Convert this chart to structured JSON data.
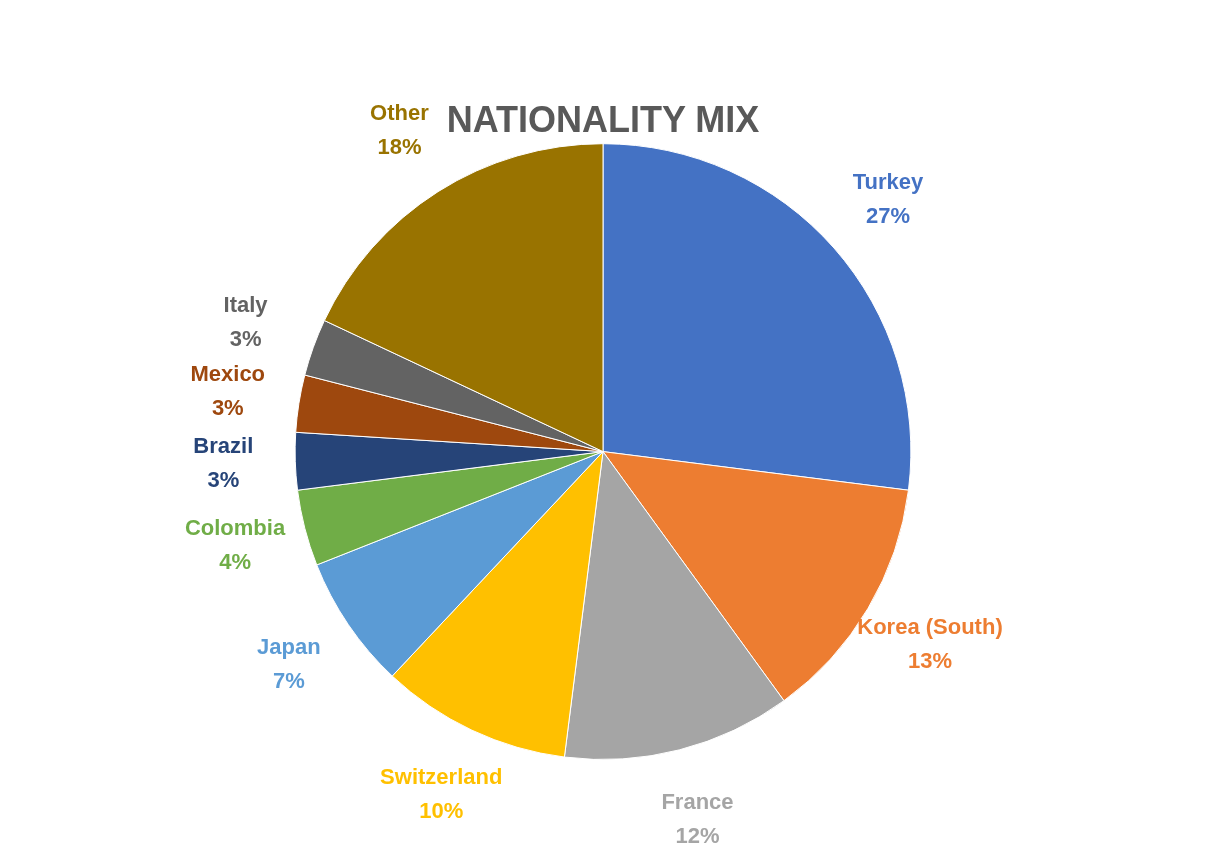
{
  "chart_data": {
    "type": "pie",
    "title": "NATIONALITY MIX",
    "categories": [
      "Turkey",
      "Korea (South)",
      "France",
      "Switzerland",
      "Japan",
      "Colombia",
      "Brazil",
      "Mexico",
      "Italy",
      "Other"
    ],
    "values": [
      27,
      13,
      12,
      10,
      7,
      4,
      3,
      3,
      3,
      18
    ],
    "value_labels": [
      "27%",
      "13%",
      "12%",
      "10%",
      "7%",
      "4%",
      "3%",
      "3%",
      "3%",
      "18%"
    ],
    "colors": [
      "#4472c4",
      "#ed7d31",
      "#a5a5a5",
      "#ffc000",
      "#5b9bd5",
      "#70ad47",
      "#264478",
      "#9e480e",
      "#636363",
      "#997300"
    ],
    "legend": false
  }
}
